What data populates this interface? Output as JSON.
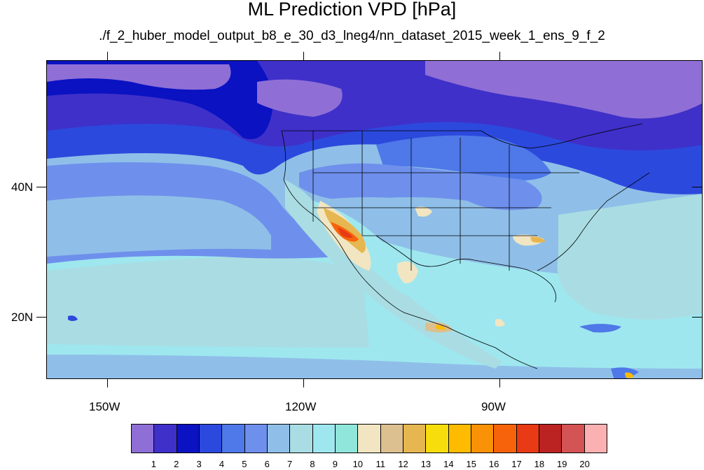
{
  "title": "ML Prediction VPD [hPa]",
  "subtitle": "./f_2_huber_model_output_b8_e_30_d3_lneg4/nn_dataset_2015_week_1_ens_9_f_2",
  "map": {
    "projection": "cylindrical-equidistant",
    "lon_range": [
      -160.5,
      -60
    ],
    "lat_range": [
      10.5,
      59.5
    ],
    "lat_labels": [
      "40N",
      "20N"
    ],
    "lon_labels": [
      "150W",
      "120W",
      "90W"
    ]
  },
  "colorbar": {
    "colors": [
      "#8f6fd6",
      "#3f30c9",
      "#0a12c2",
      "#2c49dd",
      "#4f78e8",
      "#6e90ec",
      "#8fbfe8",
      "#a9dde3",
      "#9ee7ef",
      "#90e6da",
      "#f1e5c2",
      "#dcc090",
      "#e6b750",
      "#f7dd0b",
      "#ffbb00",
      "#fa9208",
      "#f6630b",
      "#e83a14",
      "#bb2222",
      "#d45354",
      "#fbb1b2"
    ],
    "labels": [
      "1",
      "2",
      "3",
      "4",
      "5",
      "6",
      "7",
      "8",
      "9",
      "10",
      "11",
      "12",
      "13",
      "14",
      "15",
      "16",
      "17",
      "18",
      "19",
      "20"
    ]
  }
}
